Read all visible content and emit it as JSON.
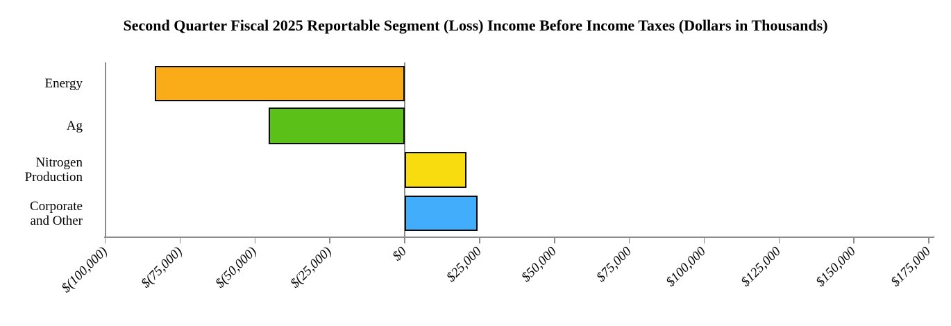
{
  "title": "Second Quarter Fiscal 2025 Reportable Segment (Loss) Income Before Income Taxes (Dollars in Thousands)",
  "chart_data": {
    "type": "bar",
    "orientation": "horizontal",
    "title": "Second Quarter Fiscal 2025 Reportable Segment (Loss) Income Before Income Taxes (Dollars in Thousands)",
    "unit": "dollars in thousands",
    "categories": [
      "Energy",
      "Ag",
      "Nitrogen Production",
      "Corporate and Other"
    ],
    "category_label_lines": [
      [
        "Energy"
      ],
      [
        "Ag"
      ],
      [
        "Nitrogen",
        "Production"
      ],
      [
        "Corporate",
        "and Other"
      ]
    ],
    "values": [
      -83500,
      -45500,
      20600,
      24300
    ],
    "bar_colors": [
      "#F9AB18",
      "#5BC119",
      "#F8DC0F",
      "#42AEFB"
    ],
    "bar_border_color": "#0a0a0a",
    "xlim": [
      -100000,
      175000
    ],
    "x_tick_step": 25000,
    "x_ticks": [
      {
        "value": -100000,
        "label": "$(100,000)"
      },
      {
        "value": -75000,
        "label": "$(75,000)"
      },
      {
        "value": -50000,
        "label": "$(50,000)"
      },
      {
        "value": -25000,
        "label": "$(25,000)"
      },
      {
        "value": 0,
        "label": "$0"
      },
      {
        "value": 25000,
        "label": "$25,000"
      },
      {
        "value": 50000,
        "label": "$50,000"
      },
      {
        "value": 75000,
        "label": "$75,000"
      },
      {
        "value": 100000,
        "label": "$100,000"
      },
      {
        "value": 125000,
        "label": "$125,000"
      },
      {
        "value": 150000,
        "label": "$150,000"
      },
      {
        "value": 175000,
        "label": "$175,000"
      }
    ],
    "grid": "zero-line-only",
    "legend": "none",
    "axis_color": "#8c8c8c"
  }
}
